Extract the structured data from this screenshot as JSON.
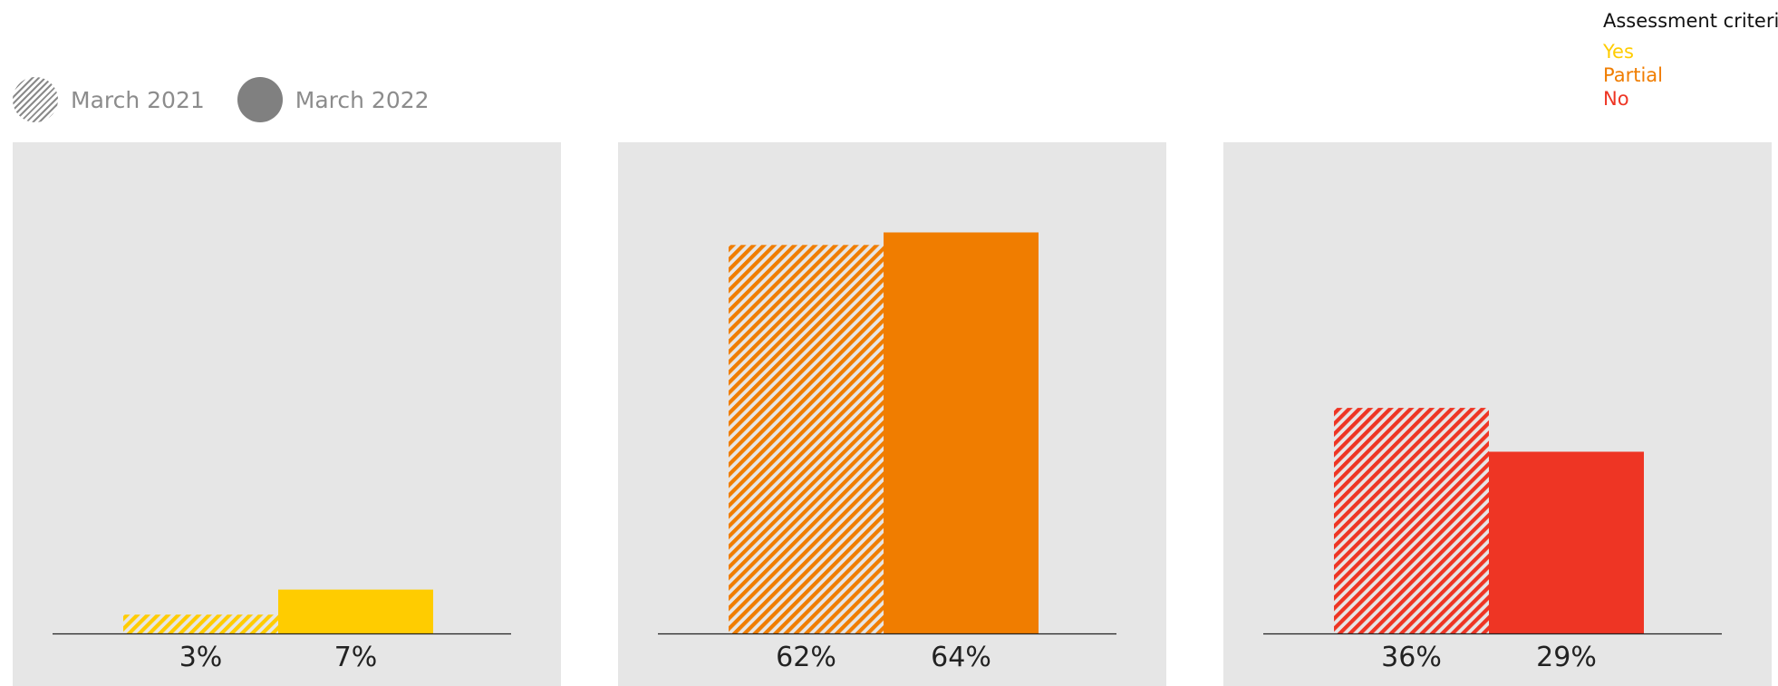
{
  "legend": {
    "periods": [
      {
        "label": "March 2021",
        "style": "hatched"
      },
      {
        "label": "March 2022",
        "style": "solid"
      }
    ],
    "period_swatch_color": "#808080",
    "criteria_title": "Assessment criteria",
    "criteria": [
      {
        "label": "Yes",
        "color": "#ffcc00"
      },
      {
        "label": "Partial",
        "color": "#f07d00"
      },
      {
        "label": "No",
        "color": "#ee3524"
      }
    ]
  },
  "chart_data": [
    {
      "type": "bar",
      "criterion": "Yes",
      "color": "#ffcc00",
      "categories": [
        "March 2021",
        "March 2022"
      ],
      "values": [
        3,
        7
      ],
      "data_labels": [
        "3%",
        "7%"
      ],
      "ylim": [
        0,
        70
      ]
    },
    {
      "type": "bar",
      "criterion": "Partial",
      "color": "#f07d00",
      "categories": [
        "March 2021",
        "March 2022"
      ],
      "values": [
        62,
        64
      ],
      "data_labels": [
        "62%",
        "64%"
      ],
      "ylim": [
        0,
        70
      ]
    },
    {
      "type": "bar",
      "criterion": "No",
      "color": "#ee3524",
      "categories": [
        "March 2021",
        "March 2022"
      ],
      "values": [
        36,
        29
      ],
      "data_labels": [
        "36%",
        "29%"
      ],
      "ylim": [
        0,
        70
      ]
    }
  ]
}
